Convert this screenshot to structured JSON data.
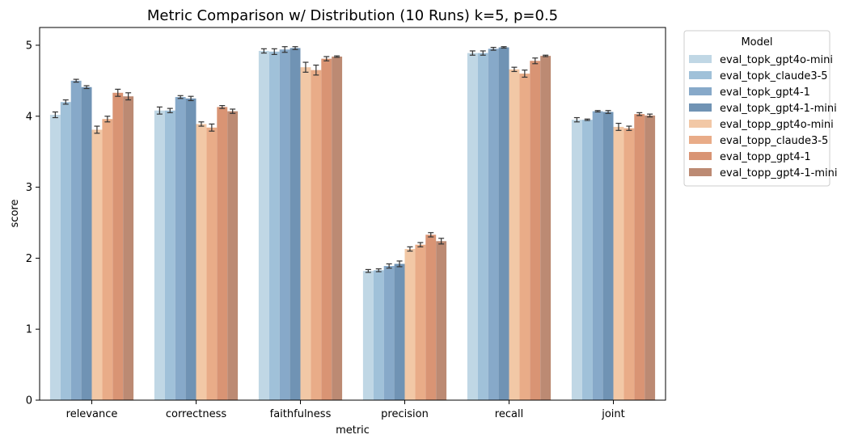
{
  "chart_data": {
    "type": "bar",
    "title": "Metric Comparison w/ Distribution (10 Runs)  k=5, p=0.5",
    "xlabel": "metric",
    "ylabel": "score",
    "ylim": [
      0,
      5.25
    ],
    "yticks": [
      0,
      1,
      2,
      3,
      4,
      5
    ],
    "grid": false,
    "legend": {
      "title": "Model",
      "placement": "outside-right"
    },
    "categories": [
      "relevance",
      "correctness",
      "faithfulness",
      "precision",
      "recall",
      "joint"
    ],
    "series": [
      {
        "name": "eval_topk_gpt4o-mini",
        "color": "#c0d7e5",
        "values": [
          4.02,
          4.08,
          4.92,
          1.82,
          4.89,
          3.95
        ],
        "err": [
          0.04,
          0.05,
          0.03,
          0.02,
          0.03,
          0.03
        ]
      },
      {
        "name": "eval_topk_claude3-5",
        "color": "#a0c1d9",
        "values": [
          4.2,
          4.08,
          4.91,
          1.83,
          4.89,
          3.95
        ],
        "err": [
          0.03,
          0.03,
          0.04,
          0.02,
          0.03,
          0.01
        ]
      },
      {
        "name": "eval_topk_gpt4-1",
        "color": "#87a9c9",
        "values": [
          4.5,
          4.27,
          4.94,
          1.89,
          4.95,
          4.07
        ],
        "err": [
          0.02,
          0.02,
          0.04,
          0.03,
          0.02,
          0.01
        ]
      },
      {
        "name": "eval_topk_gpt4-1-mini",
        "color": "#7093b4",
        "values": [
          4.41,
          4.25,
          4.96,
          1.92,
          4.97,
          4.06
        ],
        "err": [
          0.02,
          0.03,
          0.02,
          0.04,
          0.01,
          0.02
        ]
      },
      {
        "name": "eval_topp_gpt4o-mini",
        "color": "#f2c8a6",
        "values": [
          3.81,
          3.89,
          4.69,
          2.13,
          4.66,
          3.85
        ],
        "err": [
          0.05,
          0.03,
          0.07,
          0.03,
          0.03,
          0.05
        ]
      },
      {
        "name": "eval_topp_claude3-5",
        "color": "#e9ac88",
        "values": [
          3.96,
          3.84,
          4.65,
          2.19,
          4.6,
          3.83
        ],
        "err": [
          0.04,
          0.05,
          0.07,
          0.03,
          0.05,
          0.03
        ]
      },
      {
        "name": "eval_topp_gpt4-1",
        "color": "#d99474",
        "values": [
          4.33,
          4.13,
          4.81,
          2.33,
          4.78,
          4.03
        ],
        "err": [
          0.05,
          0.02,
          0.03,
          0.03,
          0.04,
          0.02
        ]
      },
      {
        "name": "eval_topp_gpt4-1-mini",
        "color": "#bc8a73",
        "values": [
          4.28,
          4.07,
          4.84,
          2.24,
          4.85,
          4.01
        ],
        "err": [
          0.05,
          0.03,
          0.01,
          0.04,
          0.01,
          0.02
        ]
      }
    ]
  }
}
